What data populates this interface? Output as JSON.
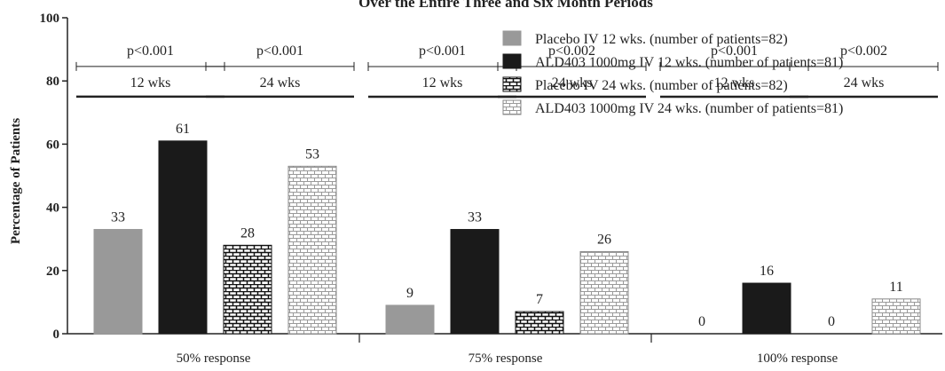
{
  "chart_data": {
    "type": "bar",
    "title": "Over the Entire Three and Six Month Periods",
    "ylabel": "Percentage of Patients",
    "xlabel": "",
    "ylim": [
      0,
      100
    ],
    "yticks": [
      0,
      20,
      40,
      60,
      80,
      100
    ],
    "grid": false,
    "legend_position": "top-right",
    "categories": [
      "50% response",
      "75% response",
      "100% response"
    ],
    "series": [
      {
        "name": "Placebo IV 12 wks. (number of patients=82)",
        "values": [
          33,
          9,
          0
        ],
        "fill": "solid",
        "color": "#999999"
      },
      {
        "name": "ALD403 1000mg IV 12 wks. (number of patients=81)",
        "values": [
          61,
          33,
          16
        ],
        "fill": "solid",
        "color": "#1a1a1a"
      },
      {
        "name": "Placebo IV 24 wks. (number of patients=82)",
        "values": [
          28,
          7,
          0
        ],
        "fill": "brick-dark",
        "color": "#1a1a1a"
      },
      {
        "name": "ALD403 1000mg IV 24 wks. (number of patients=81)",
        "values": [
          53,
          26,
          11
        ],
        "fill": "brick-light",
        "color": "#888888"
      }
    ],
    "annotations": [
      {
        "group": 0,
        "span": [
          0,
          1
        ],
        "p": "p<0.001",
        "label": "12 wks"
      },
      {
        "group": 0,
        "span": [
          2,
          3
        ],
        "p": "p<0.001",
        "label": "24 wks"
      },
      {
        "group": 1,
        "span": [
          0,
          1
        ],
        "p": "p<0.001",
        "label": "12 wks"
      },
      {
        "group": 1,
        "span": [
          2,
          3
        ],
        "p": "p<0.002",
        "label": "24 wks"
      },
      {
        "group": 2,
        "span": [
          0,
          1
        ],
        "p": "p<0.001",
        "label": "12 wks"
      },
      {
        "group": 2,
        "span": [
          2,
          3
        ],
        "p": "p<0.002",
        "label": "24 wks"
      }
    ]
  }
}
